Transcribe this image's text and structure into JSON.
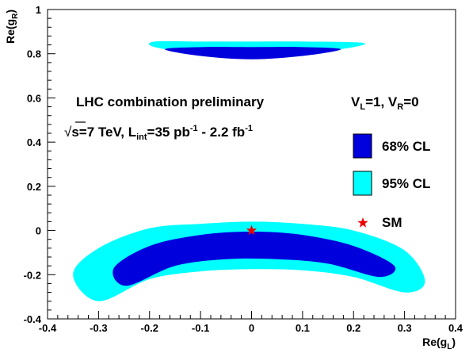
{
  "chart_data": {
    "type": "contour",
    "xlabel": "Re(g",
    "xlabel_sub": "L",
    "xlabel_close": ")",
    "ylabel": "Re(g",
    "ylabel_sub": "R",
    "ylabel_close": ")",
    "xlim": [
      -0.4,
      0.4
    ],
    "ylim": [
      -0.4,
      1.0
    ],
    "x_ticks": [
      -0.4,
      -0.3,
      -0.2,
      -0.1,
      0,
      0.1,
      0.2,
      0.3,
      0.4
    ],
    "x_tick_labels": [
      "-0.4",
      "-0.3",
      "-0.2",
      "-0.1",
      "0",
      "0.1",
      "0.2",
      "0.3",
      "0.4"
    ],
    "y_ticks": [
      -0.4,
      -0.2,
      0,
      0.2,
      0.4,
      0.6,
      0.8,
      1.0
    ],
    "y_tick_labels": [
      "-0.4",
      "-0.2",
      "0",
      "0.2",
      "0.4",
      "0.6",
      "0.8",
      "1"
    ],
    "grid": false,
    "annotations": {
      "line1": "LHC combination preliminary",
      "sqrt": "√",
      "s_part": "s=7 TeV,  L",
      "lumi_sub": "int",
      "lumi_rest": "=35 pb",
      "exp1": "-1",
      "lumi_tail": " - 2.2 fb",
      "exp2": "-1",
      "coupling_VL": "V",
      "coupling_VL_sub": "L",
      "coupling_VL_rest": "=1, V",
      "coupling_VR_sub": "R",
      "coupling_VR_rest": "=0"
    },
    "legend": {
      "placement": "right",
      "entries": [
        {
          "label": "68% CL",
          "color": "#0000dd"
        },
        {
          "label": "95% CL",
          "color": "#00ffff"
        },
        {
          "label": "SM",
          "color": "#ee0000",
          "marker": "star"
        }
      ]
    },
    "regions": [
      {
        "name": "95% CL",
        "color": "#00ffff",
        "polygons": [
          [
            [
              -0.3,
              -0.32
            ],
            [
              -0.2,
              -0.22
            ],
            [
              -0.1,
              -0.185
            ],
            [
              0.0,
              -0.175
            ],
            [
              0.1,
              -0.18
            ],
            [
              0.2,
              -0.21
            ],
            [
              0.3,
              -0.28
            ],
            [
              0.34,
              -0.23
            ],
            [
              0.3,
              -0.09
            ],
            [
              0.2,
              0.0
            ],
            [
              0.1,
              0.03
            ],
            [
              0.0,
              0.04
            ],
            [
              -0.1,
              0.03
            ],
            [
              -0.2,
              0.01
            ],
            [
              -0.3,
              -0.08
            ],
            [
              -0.35,
              -0.2
            ]
          ],
          [
            [
              -0.19,
              0.83
            ],
            [
              -0.1,
              0.8
            ],
            [
              0.0,
              0.79
            ],
            [
              0.1,
              0.8
            ],
            [
              0.2,
              0.83
            ],
            [
              0.215,
              0.85
            ],
            [
              0.1,
              0.855
            ],
            [
              0.0,
              0.855
            ],
            [
              -0.1,
              0.855
            ],
            [
              -0.19,
              0.855
            ]
          ]
        ]
      },
      {
        "name": "68% CL",
        "color": "#0000dd",
        "polygons": [
          [
            [
              -0.245,
              -0.25
            ],
            [
              -0.15,
              -0.16
            ],
            [
              -0.05,
              -0.13
            ],
            [
              0.05,
              -0.13
            ],
            [
              0.15,
              -0.15
            ],
            [
              0.25,
              -0.21
            ],
            [
              0.28,
              -0.16
            ],
            [
              0.2,
              -0.07
            ],
            [
              0.1,
              -0.02
            ],
            [
              0.0,
              -0.005
            ],
            [
              -0.1,
              -0.02
            ],
            [
              -0.2,
              -0.07
            ],
            [
              -0.27,
              -0.17
            ]
          ],
          [
            [
              -0.17,
              0.82
            ],
            [
              -0.1,
              0.79
            ],
            [
              0.0,
              0.775
            ],
            [
              0.1,
              0.79
            ],
            [
              0.175,
              0.82
            ],
            [
              0.1,
              0.83
            ],
            [
              0.0,
              0.83
            ],
            [
              -0.1,
              0.83
            ]
          ]
        ]
      }
    ],
    "points": [
      {
        "name": "SM",
        "x": 0.0,
        "y": 0.0,
        "marker": "star",
        "color": "#ee0000"
      }
    ]
  }
}
